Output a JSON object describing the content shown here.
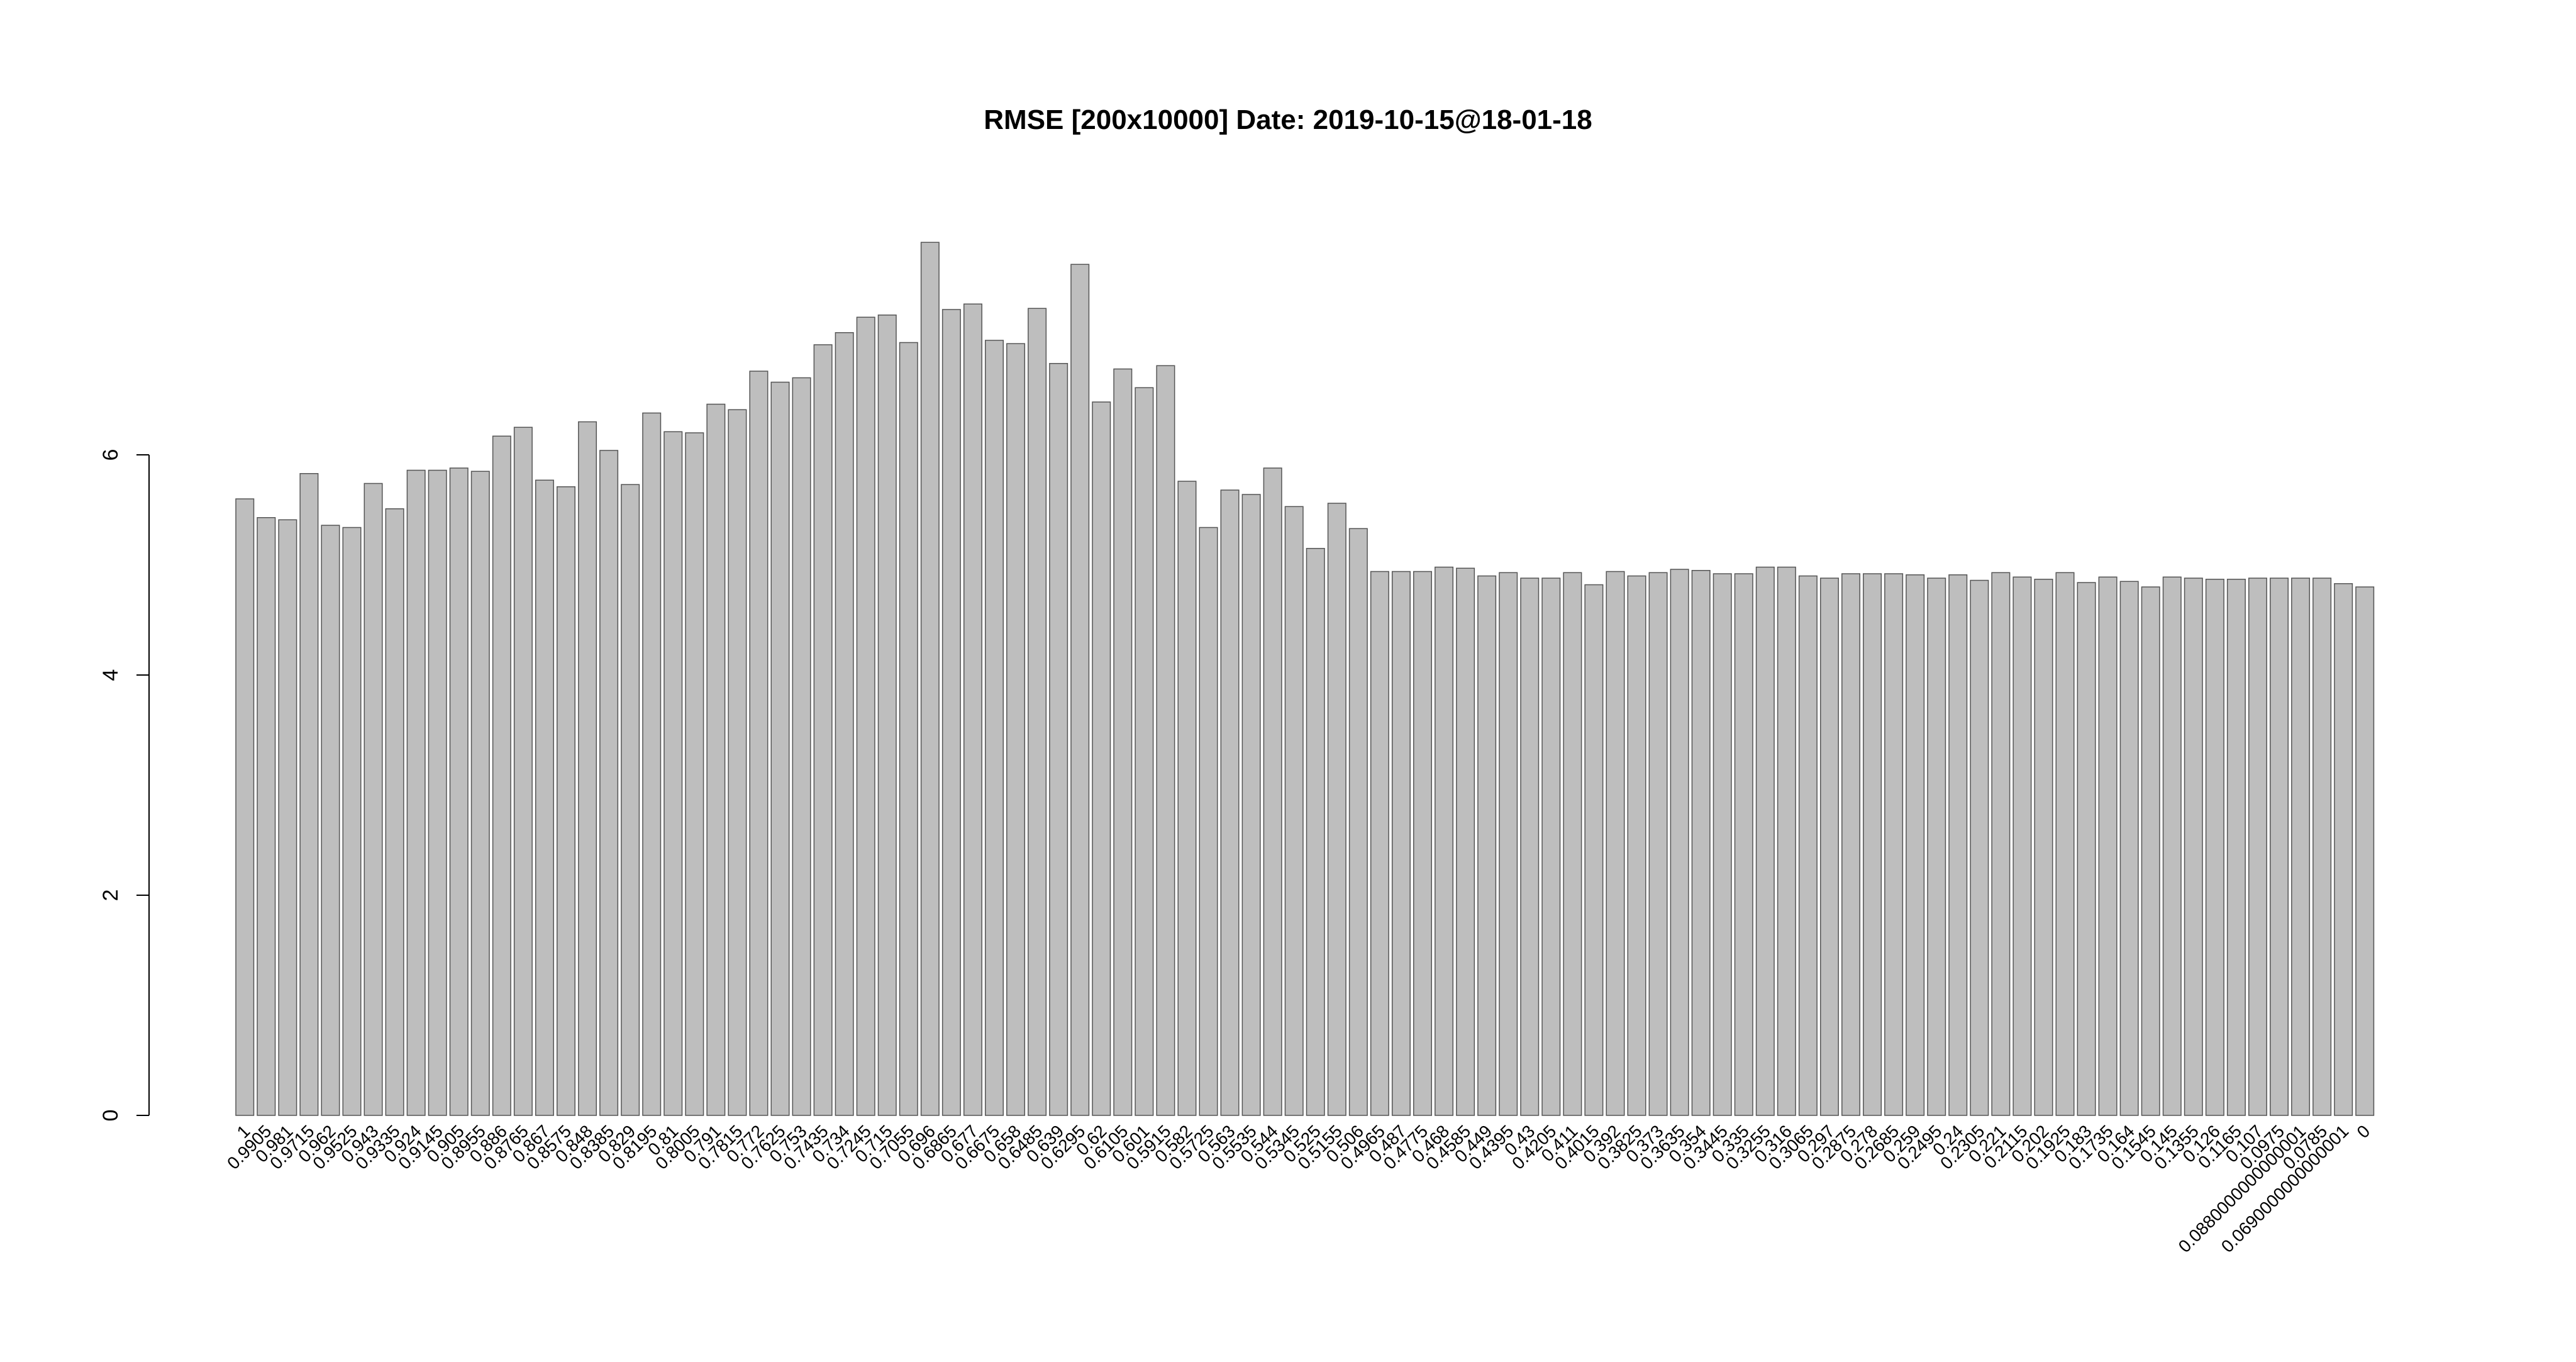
{
  "chart_data": {
    "type": "bar",
    "title": "RMSE [200x10000] Date: 2019-10-15@18-01-18",
    "xlabel": "",
    "ylabel": "",
    "ylim": [
      0,
      8
    ],
    "y_ticks": [
      0,
      2,
      4,
      6
    ],
    "bar_color": "#bebebe",
    "border_color": "#555555",
    "grid": false,
    "categories": [
      "1",
      "0.9905",
      "0.981",
      "0.9715",
      "0.962",
      "0.9525",
      "0.943",
      "0.9335",
      "0.924",
      "0.9145",
      "0.905",
      "0.8955",
      "0.886",
      "0.8765",
      "0.867",
      "0.8575",
      "0.848",
      "0.8385",
      "0.829",
      "0.8195",
      "0.81",
      "0.8005",
      "0.791",
      "0.7815",
      "0.772",
      "0.7625",
      "0.753",
      "0.7435",
      "0.734",
      "0.7245",
      "0.715",
      "0.7055",
      "0.696",
      "0.6865",
      "0.677",
      "0.6675",
      "0.658",
      "0.6485",
      "0.639",
      "0.6295",
      "0.62",
      "0.6105",
      "0.601",
      "0.5915",
      "0.582",
      "0.5725",
      "0.563",
      "0.5535",
      "0.544",
      "0.5345",
      "0.525",
      "0.5155",
      "0.506",
      "0.4965",
      "0.487",
      "0.4775",
      "0.468",
      "0.4585",
      "0.449",
      "0.4395",
      "0.43",
      "0.4205",
      "0.411",
      "0.4015",
      "0.392",
      "0.3825",
      "0.373",
      "0.3635",
      "0.354",
      "0.3445",
      "0.335",
      "0.3255",
      "0.316",
      "0.3065",
      "0.297",
      "0.2875",
      "0.278",
      "0.2685",
      "0.259",
      "0.2495",
      "0.24",
      "0.2305",
      "0.221",
      "0.2115",
      "0.202",
      "0.1925",
      "0.183",
      "0.1735",
      "0.164",
      "0.1545",
      "0.145",
      "0.1355",
      "0.126",
      "0.1165",
      "0.107",
      "0.0975",
      "0.0880000000000001",
      "0.0785",
      "0.0690000000000001",
      "0"
    ],
    "values": [
      5.6,
      5.43,
      5.41,
      5.83,
      5.36,
      5.34,
      5.74,
      5.51,
      5.86,
      5.86,
      5.88,
      5.85,
      6.17,
      6.25,
      5.77,
      5.71,
      6.3,
      6.04,
      5.73,
      6.38,
      6.21,
      6.2,
      6.46,
      6.41,
      6.76,
      6.66,
      6.7,
      7.0,
      7.11,
      7.25,
      7.27,
      7.02,
      7.93,
      7.32,
      7.37,
      7.04,
      7.01,
      7.33,
      6.83,
      7.73,
      6.48,
      6.78,
      6.61,
      6.81,
      5.76,
      5.34,
      5.68,
      5.64,
      5.88,
      5.53,
      5.15,
      5.56,
      5.33,
      4.94,
      4.94,
      4.94,
      4.98,
      4.97,
      4.9,
      4.93,
      4.88,
      4.88,
      4.93,
      4.82,
      4.94,
      4.9,
      4.93,
      4.96,
      4.95,
      4.92,
      4.92,
      4.98,
      4.98,
      4.9,
      4.88,
      4.92,
      4.92,
      4.92,
      4.91,
      4.88,
      4.91,
      4.86,
      4.93,
      4.89,
      4.87,
      4.93,
      4.84,
      4.89,
      4.85,
      4.8,
      4.89,
      4.88,
      4.87,
      4.87,
      4.88,
      4.88,
      4.88,
      4.88,
      4.83,
      4.8
    ]
  }
}
